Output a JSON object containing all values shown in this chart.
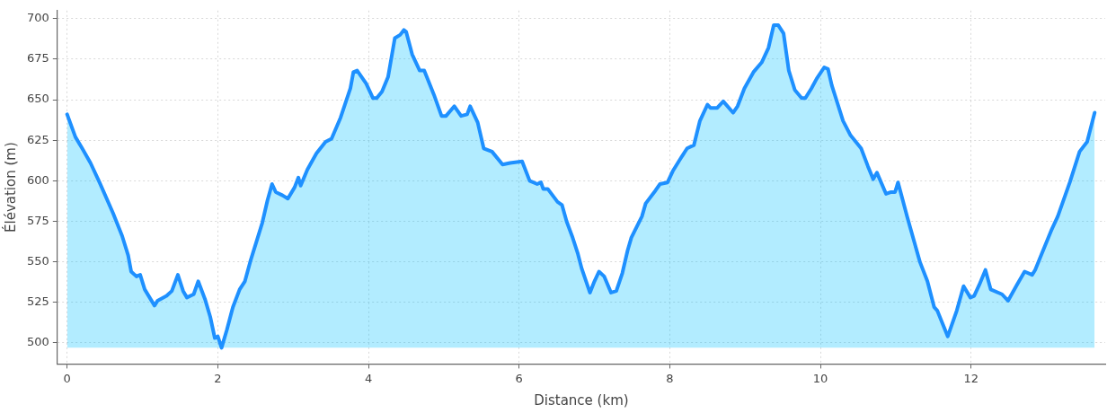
{
  "chart_data": {
    "type": "area",
    "xlabel": "Distance (km)",
    "ylabel": "Élévation (m)",
    "xlim": [
      -0.13,
      13.78
    ],
    "xticks": [
      0,
      2,
      4,
      6,
      8,
      10,
      12
    ],
    "ylim": [
      487,
      705
    ],
    "yticks": [
      500,
      525,
      550,
      575,
      600,
      625,
      650,
      675,
      700
    ],
    "grid": true,
    "legend": false,
    "marker": "none",
    "line_style": "solid",
    "series": [
      {
        "color": "#1e90ff",
        "x": [
          0,
          0.11,
          0.2,
          0.31,
          0.43,
          0.61,
          0.73,
          0.81,
          0.85,
          0.92,
          0.97,
          1.03,
          1.16,
          1.2,
          1.32,
          1.39,
          1.47,
          1.54,
          1.59,
          1.68,
          1.74,
          1.83,
          1.9,
          1.96,
          2.0,
          2.05,
          2.12,
          2.2,
          2.29,
          2.36,
          2.43,
          2.53,
          2.59,
          2.66,
          2.72,
          2.77,
          2.86,
          2.93,
          3.02,
          3.07,
          3.1,
          3.19,
          3.31,
          3.43,
          3.51,
          3.63,
          3.76,
          3.8,
          3.85,
          3.97,
          4.06,
          4.11,
          4.18,
          4.26,
          4.35,
          4.42,
          4.47,
          4.5,
          4.58,
          4.68,
          4.74,
          4.87,
          4.97,
          5.03,
          5.14,
          5.23,
          5.31,
          5.35,
          5.45,
          5.53,
          5.64,
          5.78,
          5.88,
          6.04,
          6.14,
          6.24,
          6.29,
          6.32,
          6.38,
          6.51,
          6.57,
          6.63,
          6.71,
          6.78,
          6.83,
          6.94,
          7.0,
          7.06,
          7.13,
          7.22,
          7.29,
          7.37,
          7.44,
          7.49,
          7.63,
          7.68,
          7.81,
          7.87,
          7.97,
          8.04,
          8.16,
          8.23,
          8.32,
          8.4,
          8.5,
          8.54,
          8.63,
          8.71,
          8.84,
          8.9,
          8.99,
          9.11,
          9.22,
          9.31,
          9.38,
          9.44,
          9.51,
          9.58,
          9.66,
          9.75,
          9.8,
          9.88,
          9.95,
          10.05,
          10.1,
          10.15,
          10.3,
          10.4,
          10.54,
          10.63,
          10.7,
          10.75,
          10.87,
          10.93,
          10.99,
          11.03,
          11.15,
          11.32,
          11.42,
          11.51,
          11.55,
          11.69,
          11.81,
          11.9,
          11.99,
          12.04,
          12.11,
          12.19,
          12.26,
          12.41,
          12.49,
          12.61,
          12.71,
          12.81,
          12.85,
          12.92,
          13.07,
          13.15,
          13.31,
          13.44,
          13.54,
          13.64
        ],
        "values": [
          641,
          627,
          620,
          611,
          599,
          580,
          566,
          554,
          544,
          541,
          542,
          533,
          523,
          526,
          529,
          532,
          542,
          532,
          528,
          530,
          538,
          527,
          516,
          503,
          504,
          497,
          508,
          522,
          533,
          538,
          550,
          565,
          574,
          588,
          598,
          593,
          591,
          589,
          596,
          602,
          597,
          607,
          617,
          624,
          626,
          639,
          657,
          667,
          668,
          660,
          651,
          651,
          655,
          664,
          688,
          690,
          693,
          692,
          678,
          668,
          668,
          653,
          640,
          640,
          646,
          640,
          641,
          646,
          636,
          620,
          618,
          610,
          611,
          612,
          600,
          598,
          599,
          595,
          595,
          587,
          585,
          575,
          565,
          555,
          546,
          531,
          538,
          544,
          541,
          531,
          532,
          543,
          557,
          565,
          578,
          586,
          594,
          598,
          599,
          606,
          615,
          620,
          622,
          637,
          647,
          645,
          645,
          649,
          642,
          646,
          657,
          667,
          673,
          682,
          696,
          696,
          691,
          668,
          656,
          651,
          651,
          657,
          663,
          670,
          669,
          659,
          637,
          628,
          620,
          609,
          601,
          605,
          592,
          593,
          593,
          599,
          578,
          550,
          538,
          522,
          520,
          504,
          520,
          535,
          528,
          529,
          536,
          545,
          533,
          530,
          526,
          536,
          544,
          542,
          545,
          553,
          570,
          578,
          599,
          618,
          624,
          642
        ]
      }
    ]
  }
}
